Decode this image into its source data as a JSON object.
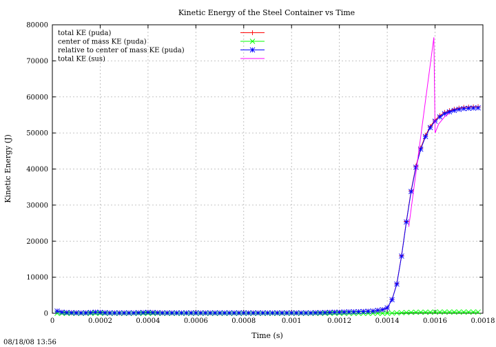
{
  "timestamp": "08/18/08 13:56",
  "chart_data": {
    "type": "line",
    "title": "Kinetic Energy of the Steel Container vs Time",
    "xlabel": "Time (s)",
    "ylabel": "Kinetic Energy (J)",
    "xlim": [
      0,
      0.0018
    ],
    "ylim": [
      0,
      80000
    ],
    "grid": true,
    "legend_placement": "top-left",
    "x_ticks": [
      0,
      0.0002,
      0.0004,
      0.0006,
      0.0008,
      0.001,
      0.0012,
      0.0014,
      0.0016,
      0.0018
    ],
    "x_tick_labels": [
      "0",
      "0.0002",
      "0.0004",
      "0.0006",
      "0.0008",
      "0.001",
      "0.0012",
      "0.0014",
      "0.0016",
      "0.0018"
    ],
    "y_ticks": [
      0,
      10000,
      20000,
      30000,
      40000,
      50000,
      60000,
      70000,
      80000
    ],
    "y_tick_labels": [
      "0",
      "10000",
      "20000",
      "30000",
      "40000",
      "50000",
      "60000",
      "70000",
      "80000"
    ],
    "series": [
      {
        "name": "total KE (puda)",
        "color": "#ff0000",
        "marker": "plus",
        "x": [
          2e-05,
          4e-05,
          6e-05,
          8e-05,
          0.0001,
          0.00012,
          0.00014,
          0.00016,
          0.00018,
          0.0002,
          0.00022,
          0.00024,
          0.00026,
          0.00028,
          0.0003,
          0.00032,
          0.00034,
          0.00036,
          0.00038,
          0.0004,
          0.00042,
          0.00044,
          0.00046,
          0.00048,
          0.0005,
          0.00052,
          0.00054,
          0.00056,
          0.00058,
          0.0006,
          0.00062,
          0.00064,
          0.00066,
          0.00068,
          0.0007,
          0.00072,
          0.00074,
          0.00076,
          0.00078,
          0.0008,
          0.00082,
          0.00084,
          0.00086,
          0.00088,
          0.0009,
          0.00092,
          0.00094,
          0.00096,
          0.00098,
          0.001,
          0.00102,
          0.00104,
          0.00106,
          0.00108,
          0.0011,
          0.00112,
          0.00114,
          0.00116,
          0.00118,
          0.0012,
          0.00122,
          0.00124,
          0.00126,
          0.00128,
          0.0013,
          0.00132,
          0.00134,
          0.00136,
          0.00138,
          0.0014,
          0.00142,
          0.00144,
          0.00146,
          0.00148,
          0.0015,
          0.00152,
          0.00154,
          0.00156,
          0.00158,
          0.0016,
          0.00162,
          0.00164,
          0.00166,
          0.00168,
          0.0017,
          0.00172,
          0.00174,
          0.00176,
          0.00178
        ],
        "y": [
          600,
          300,
          200,
          150,
          120,
          100,
          120,
          200,
          300,
          250,
          150,
          100,
          100,
          100,
          100,
          100,
          100,
          150,
          200,
          250,
          200,
          150,
          100,
          100,
          100,
          100,
          100,
          100,
          100,
          100,
          100,
          100,
          100,
          100,
          100,
          100,
          100,
          100,
          100,
          100,
          100,
          100,
          100,
          100,
          100,
          100,
          100,
          100,
          100,
          100,
          100,
          100,
          100,
          100,
          150,
          150,
          200,
          250,
          300,
          300,
          350,
          400,
          400,
          450,
          500,
          550,
          600,
          800,
          1000,
          1500,
          3800,
          8200,
          16000,
          25500,
          34000,
          40800,
          45800,
          49300,
          51800,
          53600,
          54800,
          55700,
          56200,
          56600,
          56900,
          57100,
          57200,
          57250,
          57300
        ]
      },
      {
        "name": "center of mass KE (puda)",
        "color": "#00ff00",
        "marker": "cross",
        "x": [
          2e-05,
          4e-05,
          6e-05,
          8e-05,
          0.0001,
          0.00012,
          0.00014,
          0.00016,
          0.00018,
          0.0002,
          0.00022,
          0.00024,
          0.00026,
          0.00028,
          0.0003,
          0.00032,
          0.00034,
          0.00036,
          0.00038,
          0.0004,
          0.00042,
          0.00044,
          0.00046,
          0.00048,
          0.0005,
          0.00052,
          0.00054,
          0.00056,
          0.00058,
          0.0006,
          0.00062,
          0.00064,
          0.00066,
          0.00068,
          0.0007,
          0.00072,
          0.00074,
          0.00076,
          0.00078,
          0.0008,
          0.00082,
          0.00084,
          0.00086,
          0.00088,
          0.0009,
          0.00092,
          0.00094,
          0.00096,
          0.00098,
          0.001,
          0.00102,
          0.00104,
          0.00106,
          0.00108,
          0.0011,
          0.00112,
          0.00114,
          0.00116,
          0.00118,
          0.0012,
          0.00122,
          0.00124,
          0.00126,
          0.00128,
          0.0013,
          0.00132,
          0.00134,
          0.00136,
          0.00138,
          0.0014,
          0.00142,
          0.00144,
          0.00146,
          0.00148,
          0.0015,
          0.00152,
          0.00154,
          0.00156,
          0.00158,
          0.0016,
          0.00162,
          0.00164,
          0.00166,
          0.00168,
          0.0017,
          0.00172,
          0.00174,
          0.00176,
          0.00178
        ],
        "y": [
          0,
          0,
          0,
          0,
          0,
          0,
          0,
          0,
          0,
          0,
          0,
          0,
          0,
          0,
          0,
          0,
          0,
          0,
          0,
          0,
          0,
          0,
          0,
          0,
          0,
          0,
          0,
          0,
          0,
          0,
          0,
          0,
          0,
          0,
          0,
          0,
          0,
          0,
          0,
          0,
          0,
          0,
          0,
          0,
          0,
          0,
          0,
          0,
          0,
          0,
          0,
          0,
          0,
          0,
          0,
          0,
          0,
          0,
          0,
          0,
          0,
          0,
          0,
          0,
          0,
          0,
          0,
          0,
          0,
          0,
          50,
          100,
          150,
          200,
          250,
          300,
          300,
          300,
          300,
          350,
          350,
          350,
          350,
          350,
          350,
          350,
          350,
          350,
          350
        ]
      },
      {
        "name": "relative to center of mass KE (puda)",
        "color": "#0000ff",
        "marker": "star",
        "x": [
          2e-05,
          4e-05,
          6e-05,
          8e-05,
          0.0001,
          0.00012,
          0.00014,
          0.00016,
          0.00018,
          0.0002,
          0.00022,
          0.00024,
          0.00026,
          0.00028,
          0.0003,
          0.00032,
          0.00034,
          0.00036,
          0.00038,
          0.0004,
          0.00042,
          0.00044,
          0.00046,
          0.00048,
          0.0005,
          0.00052,
          0.00054,
          0.00056,
          0.00058,
          0.0006,
          0.00062,
          0.00064,
          0.00066,
          0.00068,
          0.0007,
          0.00072,
          0.00074,
          0.00076,
          0.00078,
          0.0008,
          0.00082,
          0.00084,
          0.00086,
          0.00088,
          0.0009,
          0.00092,
          0.00094,
          0.00096,
          0.00098,
          0.001,
          0.00102,
          0.00104,
          0.00106,
          0.00108,
          0.0011,
          0.00112,
          0.00114,
          0.00116,
          0.00118,
          0.0012,
          0.00122,
          0.00124,
          0.00126,
          0.00128,
          0.0013,
          0.00132,
          0.00134,
          0.00136,
          0.00138,
          0.0014,
          0.00142,
          0.00144,
          0.00146,
          0.00148,
          0.0015,
          0.00152,
          0.00154,
          0.00156,
          0.00158,
          0.0016,
          0.00162,
          0.00164,
          0.00166,
          0.00168,
          0.0017,
          0.00172,
          0.00174,
          0.00176,
          0.00178
        ],
        "y": [
          600,
          300,
          200,
          150,
          120,
          100,
          120,
          200,
          300,
          250,
          150,
          100,
          100,
          100,
          100,
          100,
          100,
          150,
          200,
          250,
          200,
          150,
          100,
          100,
          100,
          100,
          100,
          100,
          100,
          100,
          100,
          100,
          100,
          100,
          100,
          100,
          100,
          100,
          100,
          100,
          100,
          100,
          100,
          100,
          100,
          100,
          100,
          100,
          100,
          100,
          100,
          100,
          100,
          100,
          150,
          150,
          200,
          250,
          300,
          300,
          350,
          400,
          400,
          450,
          500,
          550,
          600,
          800,
          1000,
          1500,
          3750,
          8100,
          15850,
          25300,
          33750,
          40500,
          45500,
          49000,
          51500,
          53250,
          54450,
          55350,
          55850,
          56250,
          56550,
          56750,
          56850,
          56900,
          56950
        ]
      },
      {
        "name": "total KE (sus)",
        "color": "#ff00ff",
        "marker": "none",
        "x": [
          0.00149,
          0.001595,
          0.0016,
          0.001615,
          0.00164,
          0.00166
        ],
        "y": [
          24000,
          76500,
          50000,
          52500,
          54500,
          55500
        ]
      }
    ]
  }
}
